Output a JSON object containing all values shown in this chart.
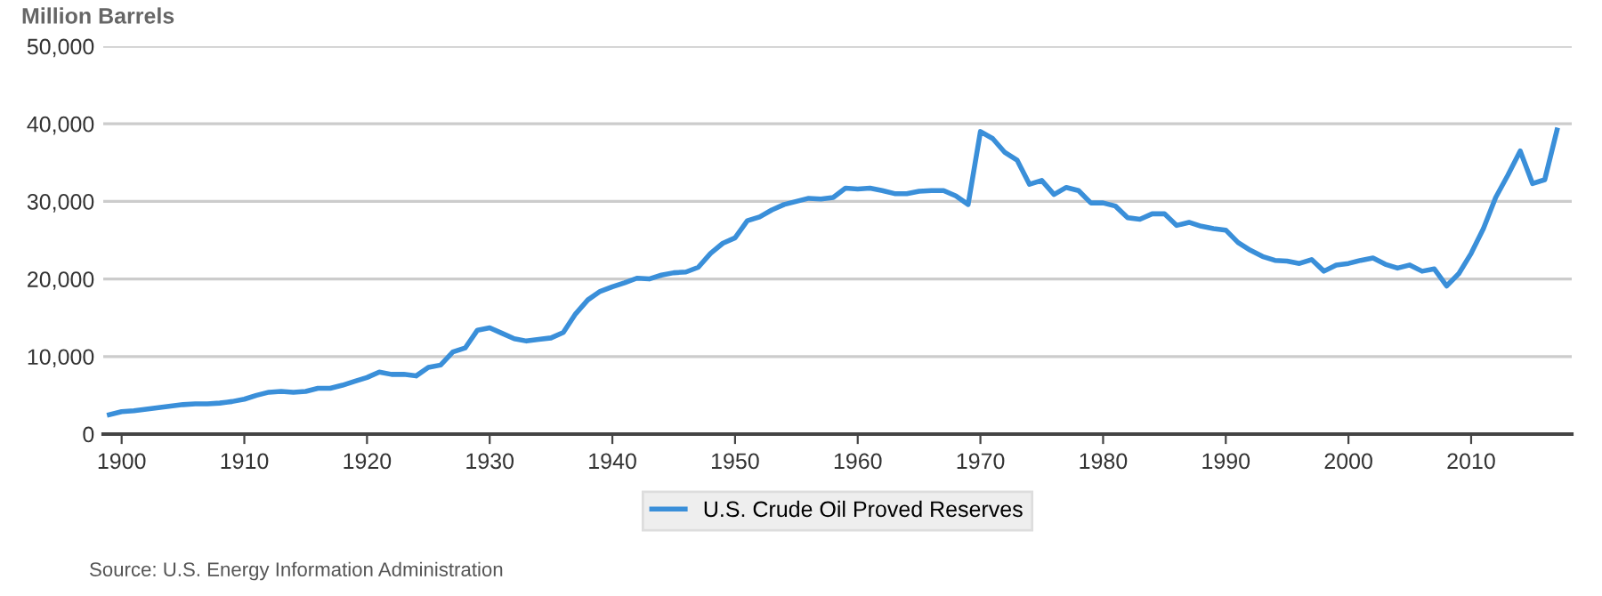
{
  "chart_data": {
    "type": "line",
    "ylabel": "Million Barrels",
    "x": [
      1899,
      1900,
      1901,
      1902,
      1903,
      1904,
      1905,
      1906,
      1907,
      1908,
      1909,
      1910,
      1911,
      1912,
      1913,
      1914,
      1915,
      1916,
      1917,
      1918,
      1919,
      1920,
      1921,
      1922,
      1923,
      1924,
      1925,
      1926,
      1927,
      1928,
      1929,
      1930,
      1931,
      1932,
      1933,
      1934,
      1935,
      1936,
      1937,
      1938,
      1939,
      1940,
      1941,
      1942,
      1943,
      1944,
      1945,
      1946,
      1947,
      1948,
      1949,
      1950,
      1951,
      1952,
      1953,
      1954,
      1955,
      1956,
      1957,
      1958,
      1959,
      1960,
      1961,
      1962,
      1963,
      1964,
      1965,
      1966,
      1967,
      1968,
      1969,
      1970,
      1971,
      1972,
      1973,
      1974,
      1975,
      1976,
      1977,
      1978,
      1979,
      1980,
      1981,
      1982,
      1983,
      1984,
      1985,
      1986,
      1987,
      1988,
      1989,
      1990,
      1991,
      1992,
      1993,
      1994,
      1995,
      1996,
      1997,
      1998,
      1999,
      2000,
      2001,
      2002,
      2003,
      2004,
      2005,
      2006,
      2007,
      2008,
      2009,
      2010,
      2011,
      2012,
      2013,
      2014,
      2015,
      2016,
      2017
    ],
    "series": [
      {
        "name": "U.S. Crude Oil Proved Reserves",
        "color": "#3a8fd9",
        "values": [
          2500,
          2900,
          3000,
          3200,
          3400,
          3600,
          3800,
          3900,
          3900,
          4000,
          4200,
          4500,
          5000,
          5400,
          5500,
          5400,
          5500,
          5900,
          5900,
          6300,
          6800,
          7300,
          8000,
          7700,
          7700,
          7500,
          8600,
          8900,
          10600,
          11100,
          13400,
          13700,
          13000,
          12300,
          12000,
          12200,
          12400,
          13100,
          15500,
          17300,
          18400,
          19000,
          19500,
          20100,
          20000,
          20500,
          20800,
          20900,
          21500,
          23300,
          24600,
          25300,
          27500,
          28000,
          28900,
          29600,
          30000,
          30400,
          30300,
          30500,
          31700,
          31600,
          31700,
          31400,
          31000,
          31000,
          31300,
          31400,
          31400,
          30700,
          29600,
          39000,
          38100,
          36300,
          35300,
          32200,
          32700,
          30900,
          31800,
          31400,
          29800,
          29800,
          29400,
          27900,
          27700,
          28400,
          28400,
          26900,
          27300,
          26800,
          26500,
          26300,
          24700,
          23700,
          22900,
          22400,
          22300,
          22000,
          22500,
          21000,
          21800,
          22000,
          22400,
          22700,
          21900,
          21400,
          21800,
          21000,
          21300,
          19100,
          20700,
          23300,
          26500,
          30500,
          33400,
          36500,
          32300,
          32800,
          39200
        ]
      }
    ],
    "xlim": [
      1898.5,
      2018.2
    ],
    "xticks": [
      1900,
      1910,
      1920,
      1930,
      1940,
      1950,
      1960,
      1970,
      1980,
      1990,
      2000,
      2010
    ],
    "ylim": [
      0,
      50000
    ],
    "yticks": [
      {
        "value": 0,
        "label": "0"
      },
      {
        "value": 10000,
        "label": "10,000"
      },
      {
        "value": 20000,
        "label": "20,000"
      },
      {
        "value": 30000,
        "label": "30,000"
      },
      {
        "value": 40000,
        "label": "40,000"
      },
      {
        "value": 50000,
        "label": "50,000"
      }
    ],
    "grid": "y",
    "legend": "bottom",
    "marker": "none",
    "line_style": "solid",
    "annotations": [
      "Source: U.S. Energy Information Administration"
    ]
  }
}
